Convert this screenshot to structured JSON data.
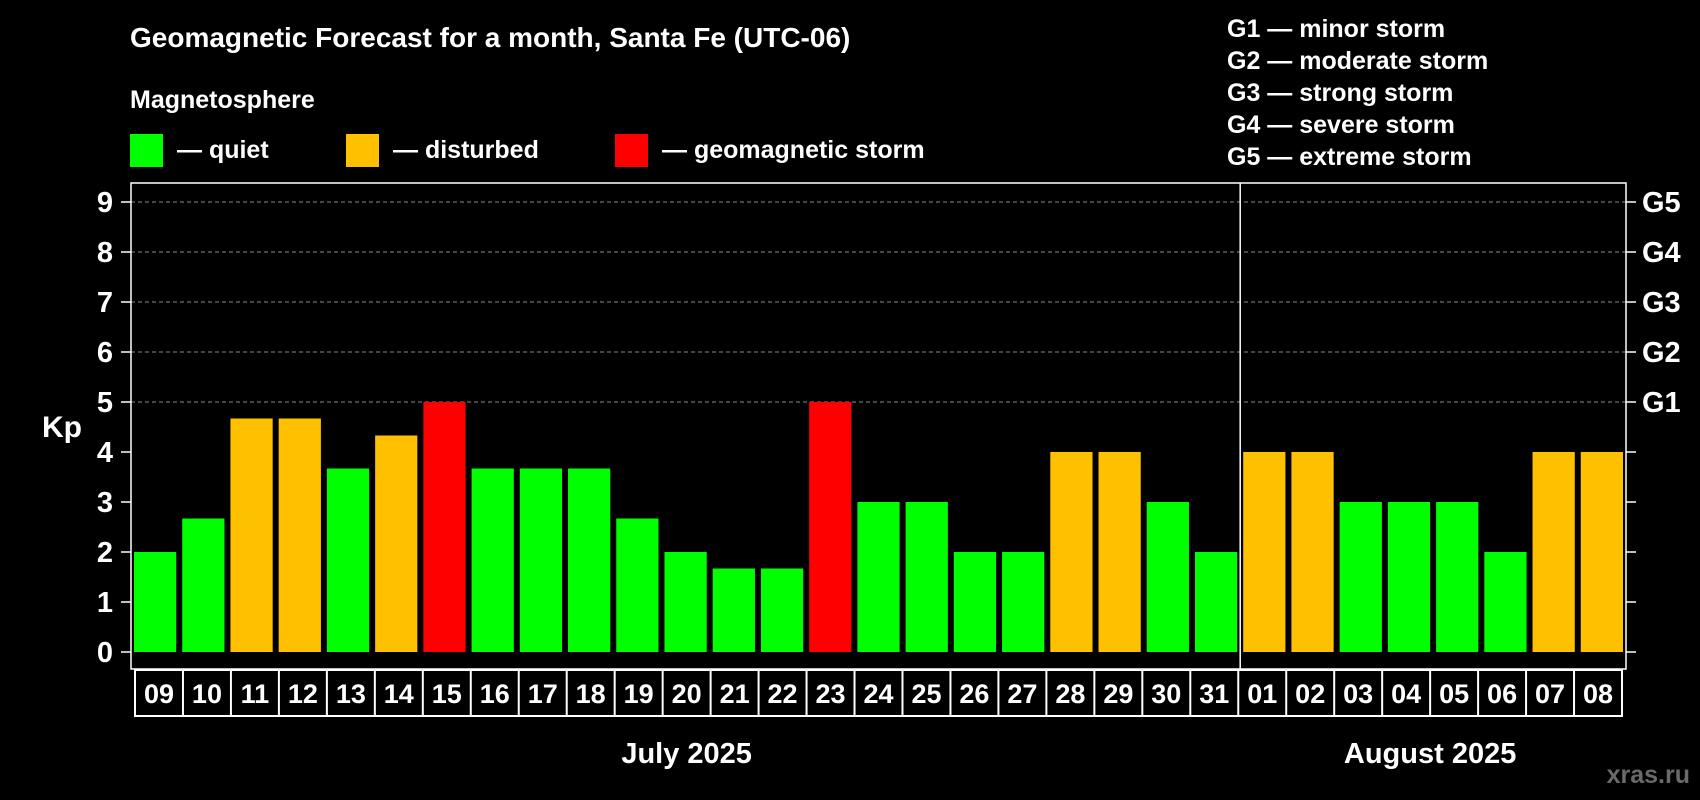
{
  "chart_data": {
    "type": "bar",
    "title": "Geomagnetic Forecast for a month, Santa Fe (UTC-06)",
    "legend": {
      "heading": "Magnetosphere",
      "items": [
        {
          "label": "— quiet",
          "color": "#00ff00",
          "status": "quiet"
        },
        {
          "label": "— disturbed",
          "color": "#ffc000",
          "status": "disturbed"
        },
        {
          "label": "— geomagnetic storm",
          "color": "#ff0000",
          "status": "storm"
        }
      ]
    },
    "storm_scale": [
      "G1 — minor storm",
      "G2 — moderate storm",
      "G3 — strong storm",
      "G4 — severe storm",
      "G5 — extreme storm"
    ],
    "ylabel": "Kp",
    "ylim": [
      0,
      9
    ],
    "yticks": [
      "0",
      "1",
      "2",
      "3",
      "4",
      "5",
      "6",
      "7",
      "8",
      "9"
    ],
    "right_ticks": [
      {
        "value": 5,
        "label": "G1"
      },
      {
        "value": 6,
        "label": "G2"
      },
      {
        "value": 7,
        "label": "G3"
      },
      {
        "value": 8,
        "label": "G4"
      },
      {
        "value": 9,
        "label": "G5"
      }
    ],
    "categories": [
      "09",
      "10",
      "11",
      "12",
      "13",
      "14",
      "15",
      "16",
      "17",
      "18",
      "19",
      "20",
      "21",
      "22",
      "23",
      "24",
      "25",
      "26",
      "27",
      "28",
      "29",
      "30",
      "31",
      "01",
      "02",
      "03",
      "04",
      "05",
      "06",
      "07",
      "08"
    ],
    "values": [
      2,
      2.67,
      4.67,
      4.67,
      3.67,
      4.33,
      5,
      3.67,
      3.67,
      3.67,
      2.67,
      2,
      1.67,
      1.67,
      5,
      3,
      3,
      2,
      2,
      4,
      4,
      3,
      2,
      4,
      4,
      3,
      3,
      3,
      2,
      4,
      4
    ],
    "status": [
      "quiet",
      "quiet",
      "disturbed",
      "disturbed",
      "quiet",
      "disturbed",
      "storm",
      "quiet",
      "quiet",
      "quiet",
      "quiet",
      "quiet",
      "quiet",
      "quiet",
      "storm",
      "quiet",
      "quiet",
      "quiet",
      "quiet",
      "disturbed",
      "disturbed",
      "quiet",
      "quiet",
      "disturbed",
      "disturbed",
      "quiet",
      "quiet",
      "quiet",
      "quiet",
      "disturbed",
      "disturbed"
    ],
    "months": [
      {
        "label": "July 2025",
        "days": 23
      },
      {
        "label": "August 2025",
        "days": 8
      }
    ],
    "grid": true
  },
  "watermark": "xras.ru"
}
